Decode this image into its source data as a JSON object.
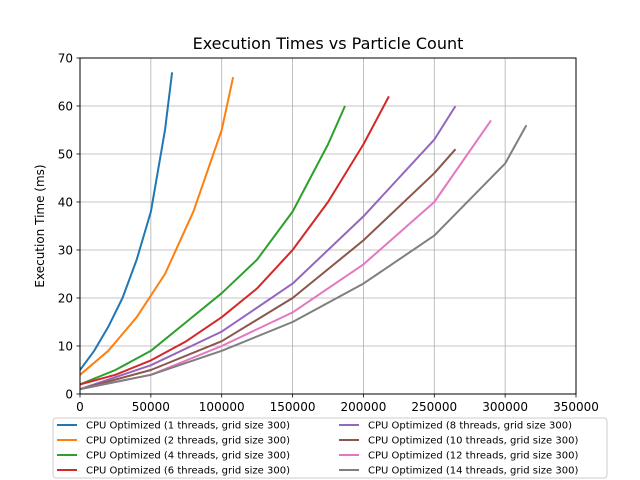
{
  "chart_data": {
    "type": "line",
    "title": "Execution Times vs Particle Count",
    "xlabel": "",
    "ylabel": "Execution Time (ms)",
    "xlim": [
      0,
      350000
    ],
    "ylim": [
      0,
      70
    ],
    "xticks": [
      0,
      50000,
      100000,
      150000,
      200000,
      250000,
      300000,
      350000
    ],
    "xtick_labels": [
      "0",
      "50000",
      "100000",
      "150000",
      "200000",
      "250000",
      "300000",
      "350000"
    ],
    "yticks": [
      0,
      10,
      20,
      30,
      40,
      50,
      60,
      70
    ],
    "ytick_labels": [
      "0",
      "10",
      "20",
      "30",
      "40",
      "50",
      "60",
      "70"
    ],
    "grid": true,
    "legend": "bottom-center, two columns",
    "series": [
      {
        "name": "CPU Optimized (1 threads, grid size 300)",
        "color": "#1f77b4",
        "x": [
          0,
          10000,
          20000,
          30000,
          40000,
          50000,
          60000,
          65000
        ],
        "y": [
          5,
          9,
          14,
          20,
          28,
          38,
          55,
          67
        ]
      },
      {
        "name": "CPU Optimized (2 threads, grid size 300)",
        "color": "#ff7f0e",
        "x": [
          0,
          20000,
          40000,
          60000,
          80000,
          100000,
          108000
        ],
        "y": [
          4,
          9,
          16,
          25,
          38,
          55,
          66
        ]
      },
      {
        "name": "CPU Optimized (4 threads, grid size 300)",
        "color": "#2ca02c",
        "x": [
          0,
          25000,
          50000,
          75000,
          100000,
          125000,
          150000,
          175000,
          187000
        ],
        "y": [
          2,
          5,
          9,
          15,
          21,
          28,
          38,
          52,
          60
        ]
      },
      {
        "name": "CPU Optimized (6 threads, grid size 300)",
        "color": "#d62728",
        "x": [
          0,
          25000,
          50000,
          75000,
          100000,
          125000,
          150000,
          175000,
          200000,
          218000
        ],
        "y": [
          2,
          4,
          7,
          11,
          16,
          22,
          30,
          40,
          52,
          62
        ]
      },
      {
        "name": "CPU Optimized (8 threads, grid size 300)",
        "color": "#9467bd",
        "x": [
          0,
          50000,
          100000,
          150000,
          200000,
          250000,
          265000
        ],
        "y": [
          1,
          6,
          13,
          23,
          37,
          53,
          60
        ]
      },
      {
        "name": "CPU Optimized (10 threads, grid size 300)",
        "color": "#8c564b",
        "x": [
          0,
          50000,
          100000,
          150000,
          200000,
          250000,
          265000
        ],
        "y": [
          1,
          5,
          11,
          20,
          32,
          46,
          51
        ]
      },
      {
        "name": "CPU Optimized (12 threads, grid size 300)",
        "color": "#e377c2",
        "x": [
          0,
          50000,
          100000,
          150000,
          200000,
          250000,
          290000
        ],
        "y": [
          1,
          4,
          10,
          17,
          27,
          40,
          57
        ]
      },
      {
        "name": "CPU Optimized (14 threads, grid size 300)",
        "color": "#7f7f7f",
        "x": [
          0,
          50000,
          100000,
          150000,
          200000,
          250000,
          300000,
          315000
        ],
        "y": [
          1,
          4,
          9,
          15,
          23,
          33,
          48,
          56
        ]
      }
    ]
  }
}
